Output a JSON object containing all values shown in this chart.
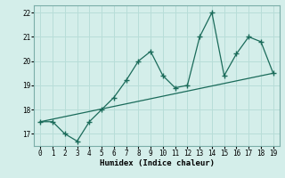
{
  "x": [
    0,
    1,
    2,
    3,
    4,
    5,
    6,
    7,
    8,
    9,
    10,
    11,
    12,
    13,
    14,
    15,
    16,
    17,
    18,
    19
  ],
  "y": [
    17.5,
    17.5,
    17.0,
    16.7,
    17.5,
    18.0,
    18.5,
    19.2,
    20.0,
    20.4,
    19.4,
    18.9,
    19.0,
    21.0,
    22.0,
    19.4,
    20.3,
    21.0,
    20.8,
    19.5
  ],
  "trend_x": [
    0,
    19
  ],
  "trend_y": [
    17.5,
    19.5
  ],
  "line_color": "#1a6b5a",
  "bg_color": "#d4eeea",
  "grid_color": "#b8ddd8",
  "xlabel": "Humidex (Indice chaleur)",
  "ylim": [
    16.5,
    22.3
  ],
  "xlim": [
    -0.5,
    19.5
  ],
  "yticks": [
    17,
    18,
    19,
    20,
    21,
    22
  ],
  "xticks": [
    0,
    1,
    2,
    3,
    4,
    5,
    6,
    7,
    8,
    9,
    10,
    11,
    12,
    13,
    14,
    15,
    16,
    17,
    18,
    19
  ]
}
